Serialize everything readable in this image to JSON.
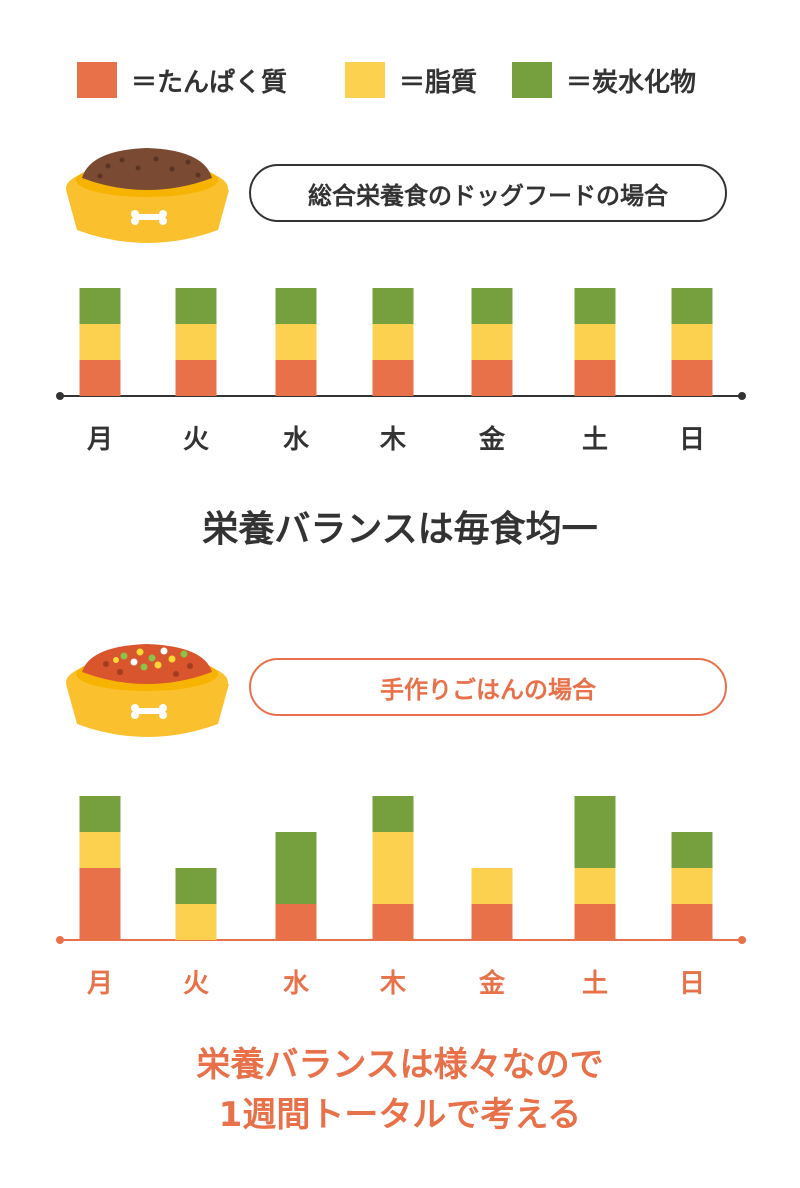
{
  "legend": {
    "items": [
      {
        "label": "＝たんぱく質",
        "color": "#e8714a"
      },
      {
        "label": "＝脂質",
        "color": "#fcd14f"
      },
      {
        "label": "＝炭水化物",
        "color": "#76a03d"
      }
    ]
  },
  "sections": [
    {
      "title": "総合栄養食のドッグフードの場合",
      "caption": "栄養バランスは毎食均一",
      "accent": "#333333"
    },
    {
      "title": "手作りごはんの場合",
      "caption_lines": [
        "栄養バランスは様々なので",
        "1週間トータルで考える"
      ],
      "accent": "#e8714a"
    }
  ],
  "colors": {
    "protein": "#e8714a",
    "fat": "#fcd14f",
    "carb": "#76a03d",
    "bowl": "#fbc02d",
    "kibble": "#7b4a32",
    "axis_dark": "#333333",
    "axis_orange": "#e8714a"
  },
  "chart_data": [
    {
      "type": "bar",
      "stacked": true,
      "categories": [
        "月",
        "火",
        "水",
        "木",
        "金",
        "土",
        "日"
      ],
      "series": [
        {
          "name": "＝たんぱく質",
          "values": [
            1,
            1,
            1,
            1,
            1,
            1,
            1
          ]
        },
        {
          "name": "＝脂質",
          "values": [
            1,
            1,
            1,
            1,
            1,
            1,
            1
          ]
        },
        {
          "name": "＝炭水化物",
          "values": [
            1,
            1,
            1,
            1,
            1,
            1,
            1
          ]
        }
      ],
      "ylim": [
        0,
        3
      ]
    },
    {
      "type": "bar",
      "stacked": true,
      "categories": [
        "月",
        "火",
        "水",
        "木",
        "金",
        "土",
        "日"
      ],
      "series": [
        {
          "name": "＝たんぱく質",
          "values": [
            2,
            0,
            1,
            1,
            1,
            1,
            1
          ]
        },
        {
          "name": "＝脂質",
          "values": [
            1,
            1,
            0,
            2,
            1,
            1,
            1
          ]
        },
        {
          "name": "＝炭水化物",
          "values": [
            1,
            1,
            2,
            1,
            0,
            2,
            1
          ]
        }
      ],
      "ylim": [
        0,
        4
      ]
    }
  ]
}
